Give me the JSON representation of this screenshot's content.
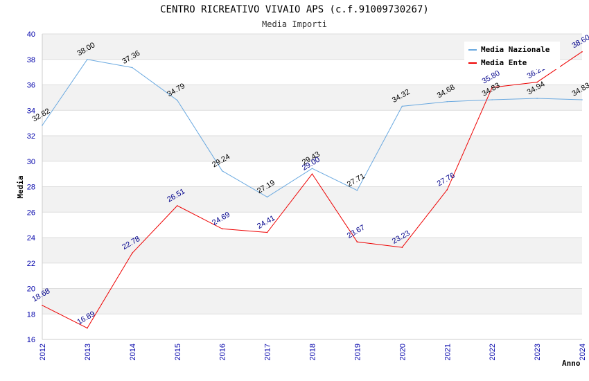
{
  "chart_data": {
    "type": "line",
    "title": "CENTRO RICREATIVO VIVAIO APS (c.f.91009730267)",
    "subtitle": "Media Importi",
    "xlabel": "Anno",
    "ylabel": "Media",
    "ylim": [
      16,
      40
    ],
    "yticks": [
      "16",
      "18",
      "20",
      "22",
      "24",
      "26",
      "28",
      "30",
      "32",
      "34",
      "36",
      "38",
      "40"
    ],
    "categories": [
      "2012",
      "2013",
      "2014",
      "2015",
      "2016",
      "2017",
      "2018",
      "2019",
      "2020",
      "2021",
      "2022",
      "2023",
      "2024"
    ],
    "grid": true,
    "legend_position": "top-right",
    "series": [
      {
        "name": "Media Nazionale",
        "color": "#6aa9e0",
        "label_color": "#000000",
        "values": [
          32.82,
          38.0,
          37.36,
          34.79,
          29.24,
          27.19,
          29.43,
          27.71,
          34.32,
          34.68,
          34.83,
          34.94,
          34.83
        ],
        "labels": [
          "32.82",
          "38.00",
          "37.36",
          "34.79",
          "29.24",
          "27.19",
          "29.43",
          "27.71",
          "34.32",
          "34.68",
          "34.83",
          "34.94",
          "34.83"
        ]
      },
      {
        "name": "Media Ente",
        "color": "#ee0000",
        "label_color": "#00008b",
        "values": [
          18.68,
          16.89,
          22.78,
          26.51,
          24.69,
          24.41,
          29.0,
          23.67,
          23.23,
          27.76,
          35.8,
          36.21,
          38.6
        ],
        "labels": [
          "18.68",
          "16.89",
          "22.78",
          "26.51",
          "24.69",
          "24.41",
          "29.00",
          "23.67",
          "23.23",
          "27.76",
          "35.80",
          "36.21",
          "38.60"
        ]
      }
    ]
  }
}
